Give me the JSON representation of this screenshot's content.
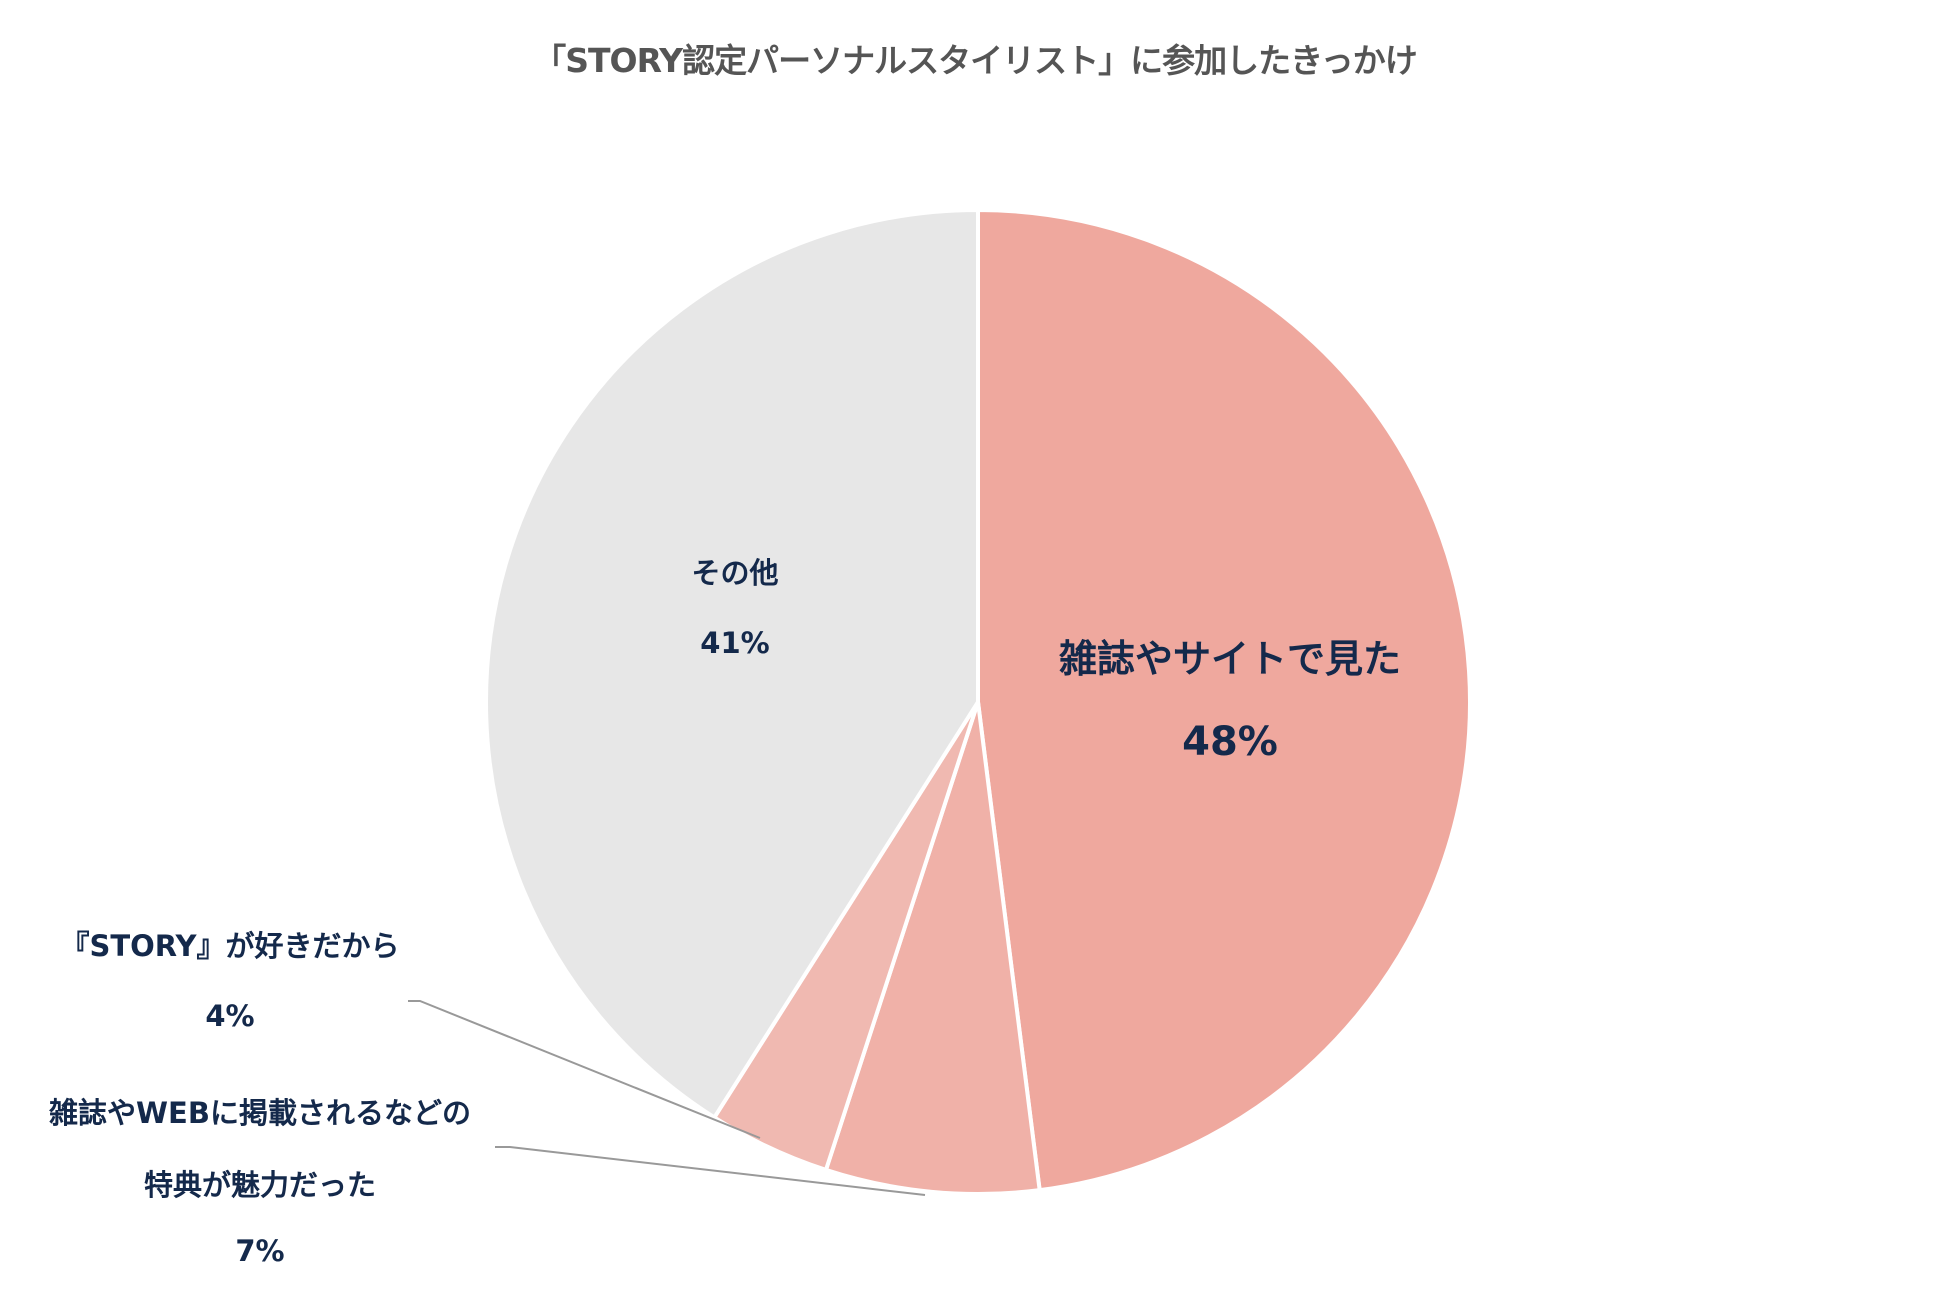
{
  "title": "「STORY認定パーソナルスタイリスト」に参加したきっかけ",
  "colors": {
    "magazine_site": "#EFA89E",
    "web_benefit": "#F0B1A8",
    "like_story": "#F0B9B1",
    "other": "#E7E7E7",
    "label_text": "#14294B",
    "title_text": "#555555",
    "leader_line": "#999999"
  },
  "labels": {
    "magazine_site": {
      "name": "雑誌やサイトで見た",
      "value": "48%"
    },
    "other": {
      "name": "その他",
      "value": "41%"
    },
    "like_story": {
      "name": "『STORY』が好きだから",
      "value": "4%"
    },
    "web_benefit": {
      "name_line1": "雑誌やWEBに掲載されるなどの",
      "name_line2": "特典が魅力だった",
      "value": "7%"
    }
  },
  "chart_data": {
    "type": "pie",
    "title": "「STORY認定パーソナルスタイリスト」に参加したきっかけ",
    "start_angle": "12 o'clock",
    "direction": "clockwise",
    "categories": [
      "雑誌やサイトで見た",
      "雑誌やWEBに掲載されるなどの特典が魅力だった",
      "『STORY』が好きだから",
      "その他"
    ],
    "values": [
      48,
      7,
      4,
      41
    ],
    "unit": "%",
    "colors": [
      "#EFA89E",
      "#F0B1A8",
      "#F0B9B1",
      "#E7E7E7"
    ],
    "legend": "none (data labels on/near slices with leader lines for small slices)"
  }
}
